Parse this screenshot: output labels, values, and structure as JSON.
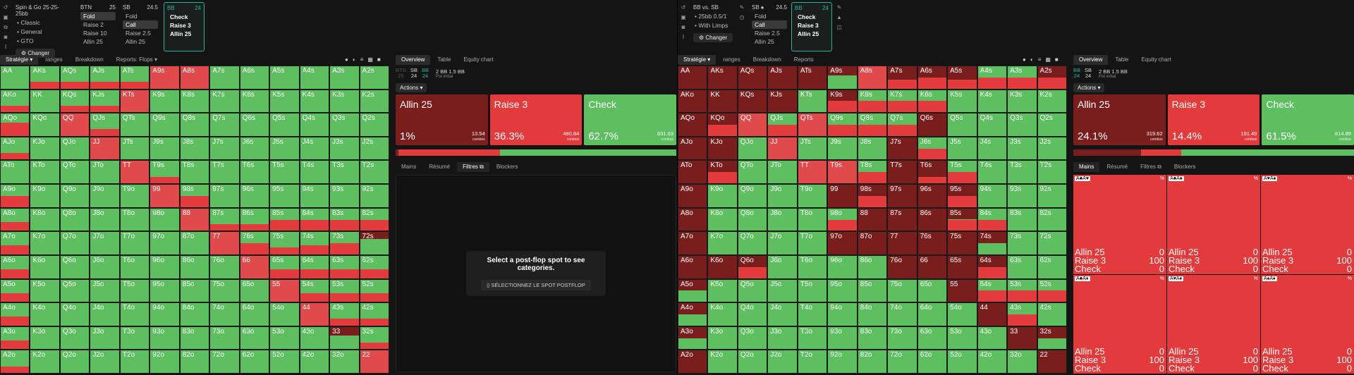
{
  "left": {
    "meta": {
      "title": "Spin & Go  25-25-25bb",
      "items": [
        "• Classic",
        "• General",
        "• GTO"
      ],
      "changer": "⚙ Changer"
    },
    "spots": [
      {
        "pos": "BTN",
        "stack": "25",
        "items": [
          "Fold",
          "Raise 2",
          "Raise 10",
          "Allin 25"
        ],
        "sel": 0
      },
      {
        "pos": "SB",
        "stack": "24.5",
        "items": [
          "Fold",
          "Call",
          "Raise 2.5",
          "Allin 25"
        ],
        "sel": 1
      },
      {
        "pos": "BB",
        "stack": "24",
        "items": [
          "Check",
          "Raise 3",
          "Allin 25"
        ],
        "active": true
      }
    ],
    "gridtabs": [
      "Stratégie ▾",
      "ranges",
      "Breakdown",
      "Reports: Flops ▾"
    ],
    "rtabs": [
      "Overview",
      "Table",
      "Equity chart"
    ],
    "seats": [
      [
        "BTN",
        "25"
      ],
      [
        "SB",
        "24"
      ],
      [
        "BB",
        "24"
      ]
    ],
    "pot": "2 BB  1.5 BB",
    "potsub": "Pot initial",
    "actions_label": "Actions ▾",
    "actions": [
      {
        "name": "Allin 25",
        "pct": "1%",
        "combos": "13.54",
        "sub": "combos",
        "color": "#7a1d1d"
      },
      {
        "name": "Raise 3",
        "pct": "36.3%",
        "combos": "480.84",
        "sub": "combos",
        "color": "#e33b3b"
      },
      {
        "name": "Check",
        "pct": "62.7%",
        "combos": "831.63",
        "sub": "combos",
        "color": "#5dbf60"
      }
    ],
    "subtabs": [
      "Mains",
      "Résumé",
      "Filtres ⧉",
      "Blockers"
    ],
    "empty_msg": "Select a post-flop spot to see categories.",
    "empty_btn": "▯  SÉLECTIONNEZ LE SPOT POSTFLOP"
  },
  "right": {
    "meta": {
      "title": "BB vs. SB",
      "items": [
        "• 25bb 0.5/1",
        "• With Limps"
      ],
      "changer": "⚙ Changer"
    },
    "spots": [
      {
        "pos": "SB ♠",
        "stack": "24.5",
        "items": [
          "Fold",
          "Call",
          "Raise 2.5",
          "Allin 25"
        ],
        "sel": 1
      },
      {
        "pos": "BB",
        "stack": "24",
        "items": [
          "Check",
          "Raise 3",
          "Allin 25"
        ],
        "active": true
      }
    ],
    "gridtabs": [
      "Stratégie ▾",
      "ranges",
      "Breakdown",
      "Reports"
    ],
    "rtabs": [
      "Overview",
      "Table",
      "Equity chart"
    ],
    "seats": [
      [
        "BB",
        "24"
      ],
      [
        "SB",
        "24"
      ]
    ],
    "pot": "2 BB  1.5 BB",
    "potsub": "Pot initial",
    "actions_label": "Actions ▾",
    "actions": [
      {
        "name": "Allin 25",
        "pct": "24.1%",
        "combos": "319.62",
        "sub": "combos",
        "color": "#7a1d1d"
      },
      {
        "name": "Raise 3",
        "pct": "14.4%",
        "combos": "191.49",
        "sub": "combos",
        "color": "#e33b3b"
      },
      {
        "name": "Check",
        "pct": "61.5%",
        "combos": "814.89",
        "sub": "combos",
        "color": "#5dbf60"
      }
    ],
    "subtabs": [
      "Mains",
      "Résumé",
      "Filtres ⧉",
      "Blockers"
    ],
    "cards": [
      {
        "hand": "A♣A♥",
        "rows": [
          [
            "Allin 25",
            "0"
          ],
          [
            "Raise 3",
            "100"
          ],
          [
            "Check",
            "0"
          ]
        ]
      },
      {
        "hand": "A♣A♠",
        "rows": [
          [
            "Allin 25",
            "0"
          ],
          [
            "Raise 3",
            "100"
          ],
          [
            "Check",
            "0"
          ]
        ]
      },
      {
        "hand": "A♥A♠",
        "rows": [
          [
            "Allin 25",
            "0"
          ],
          [
            "Raise 3",
            "100"
          ],
          [
            "Check",
            "0"
          ]
        ]
      },
      {
        "hand": "A♣A♦",
        "rows": [
          [
            "Allin 25",
            "0"
          ],
          [
            "Raise 3",
            "100"
          ],
          [
            "Check",
            "0"
          ]
        ]
      },
      {
        "hand": "A♥A♦",
        "rows": [
          [
            "Allin 25",
            "0"
          ],
          [
            "Raise 3",
            "100"
          ],
          [
            "Check",
            "0"
          ]
        ]
      },
      {
        "hand": "A♠A♦",
        "rows": [
          [
            "Allin 25",
            "0"
          ],
          [
            "Raise 3",
            "100"
          ],
          [
            "Check",
            "0"
          ]
        ]
      }
    ]
  },
  "colors": {
    "check": "#5dbf60",
    "raise": "#e33b3b",
    "allin": "#7a1d1d",
    "accent": "#1fb39a"
  }
}
